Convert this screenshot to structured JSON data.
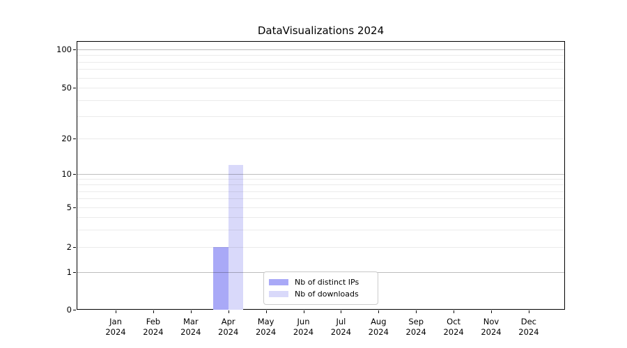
{
  "chart_data": {
    "type": "bar",
    "title": "DataVisualizations 2024",
    "categories": [
      "Jan 2024",
      "Feb 2024",
      "Mar 2024",
      "Apr 2024",
      "May 2024",
      "Jun 2024",
      "Jul 2024",
      "Aug 2024",
      "Sep 2024",
      "Oct 2024",
      "Nov 2024",
      "Dec 2024"
    ],
    "series": [
      {
        "name": "Nb of distinct IPs",
        "color": "#a9a9f7",
        "values": [
          0,
          0,
          0,
          2,
          0,
          0,
          0,
          0,
          0,
          0,
          0,
          0
        ]
      },
      {
        "name": "Nb of downloads",
        "color": "#d9d9fa",
        "values": [
          0,
          0,
          0,
          12,
          0,
          0,
          0,
          0,
          0,
          0,
          0,
          0
        ]
      }
    ],
    "xlabel": "",
    "ylabel": "",
    "yticks": [
      0,
      1,
      2,
      5,
      10,
      20,
      50,
      100
    ],
    "ylim": [
      0,
      115
    ],
    "yscale": "asinh (log-like, linear near 0)",
    "grid": "horizontal major+minor",
    "legend_position": "lower center"
  },
  "colors": {
    "background": "#ffffff",
    "spine": "#000000",
    "major_gridline": "#bdbdbd",
    "minor_gridline": "#ebebeb",
    "bar_distinct_ips": "#a9a9f7",
    "bar_downloads": "#d9d9fa",
    "legend_border": "#cccccc"
  }
}
